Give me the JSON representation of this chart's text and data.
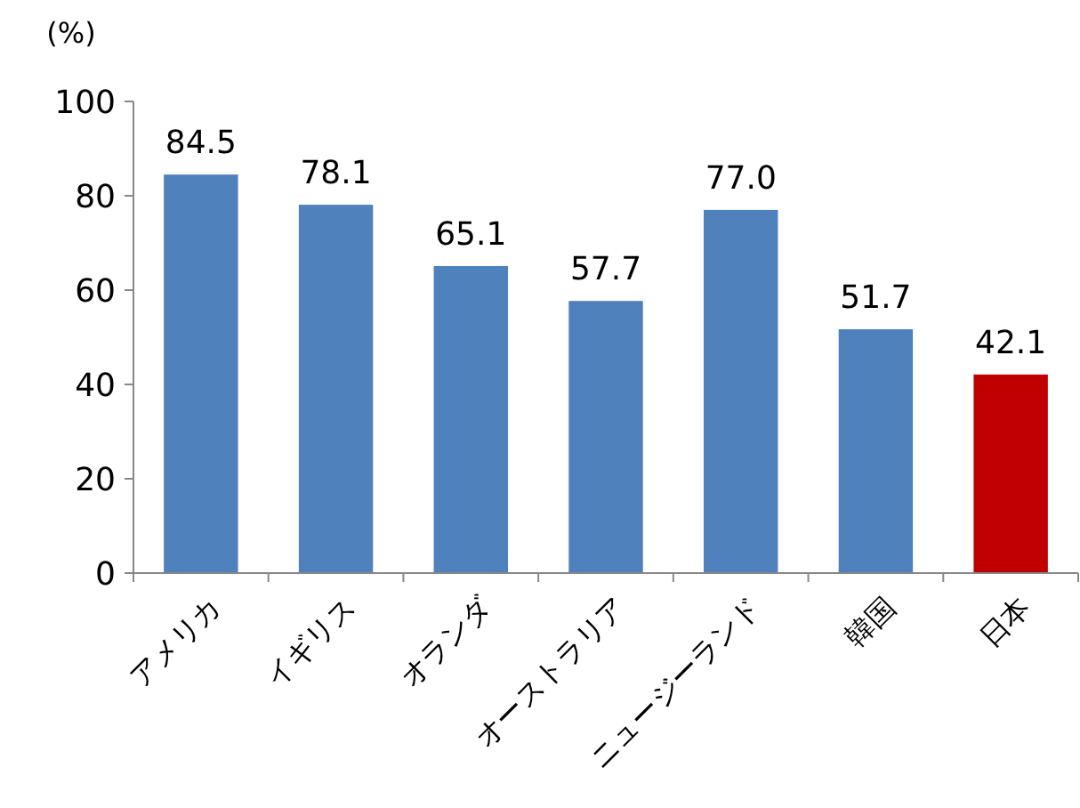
{
  "chart_data": {
    "type": "bar",
    "ylabel": "(%)",
    "categories": [
      "アメリカ",
      "イギリス",
      "オランダ",
      "オーストラリア",
      "ニュージーランド",
      "韓国",
      "日本"
    ],
    "values": [
      84.5,
      78.1,
      65.1,
      57.7,
      77.0,
      51.7,
      42.1
    ],
    "colors": [
      "#4f81bd",
      "#4f81bd",
      "#4f81bd",
      "#4f81bd",
      "#4f81bd",
      "#4f81bd",
      "#c00000"
    ],
    "value_labels": [
      "84.5",
      "78.1",
      "65.1",
      "57.7",
      "77.0",
      "51.7",
      "42.1"
    ],
    "ylim": [
      0,
      100
    ],
    "yticks": [
      0,
      20,
      40,
      60,
      80,
      100
    ],
    "grid": false
  }
}
